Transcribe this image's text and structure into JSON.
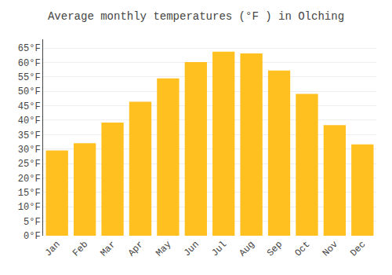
{
  "chart_data": {
    "type": "bar",
    "title": "Average monthly temperatures (°F ) in Olching",
    "categories": [
      "Jan",
      "Feb",
      "Mar",
      "Apr",
      "May",
      "Jun",
      "Jul",
      "Aug",
      "Sep",
      "Oct",
      "Nov",
      "Dec"
    ],
    "values": [
      29.5,
      32.0,
      39.2,
      46.4,
      54.5,
      60.1,
      63.7,
      63.1,
      57.2,
      49.1,
      38.3,
      31.6
    ],
    "color": "#FFC020",
    "ylim": [
      0,
      68
    ],
    "yticks": [
      {
        "value": 0,
        "label": "0°F"
      },
      {
        "value": 5,
        "label": "5°F"
      },
      {
        "value": 10,
        "label": "10°F"
      },
      {
        "value": 15,
        "label": "15°F"
      },
      {
        "value": 20,
        "label": "20°F"
      },
      {
        "value": 25,
        "label": "25°F"
      },
      {
        "value": 30,
        "label": "30°F"
      },
      {
        "value": 35,
        "label": "35°F"
      },
      {
        "value": 40,
        "label": "40°F"
      },
      {
        "value": 45,
        "label": "45°F"
      },
      {
        "value": 50,
        "label": "50°F"
      },
      {
        "value": 55,
        "label": "55°F"
      },
      {
        "value": 60,
        "label": "60°F"
      },
      {
        "value": 65,
        "label": "65°F"
      }
    ],
    "grid": true
  }
}
